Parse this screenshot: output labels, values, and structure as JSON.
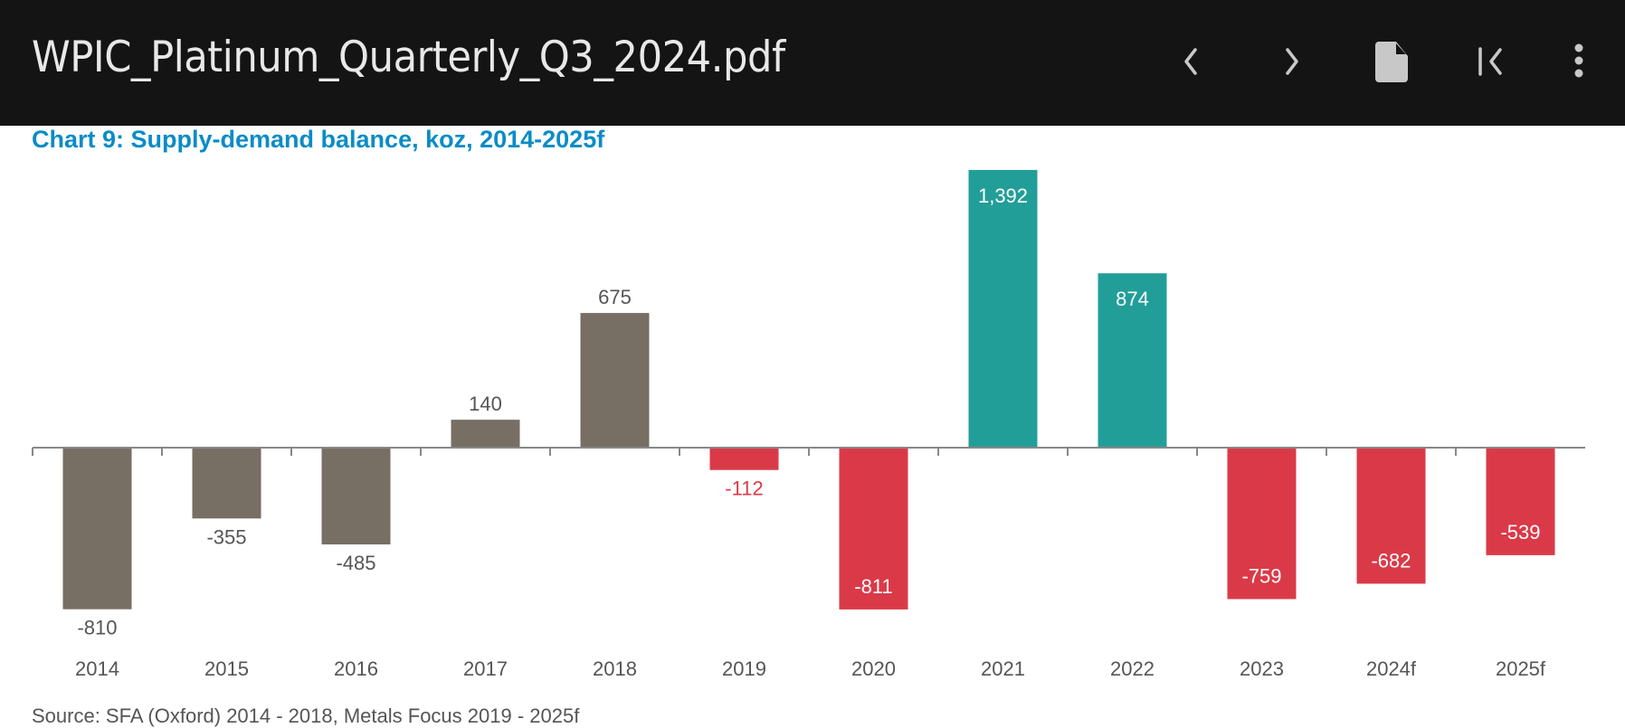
{
  "toolbar": {
    "title": "WPIC_Platinum_Quarterly_Q3_2024.pdf",
    "buttons": [
      {
        "name": "previous-button",
        "icon": "chevron-left-icon"
      },
      {
        "name": "next-button",
        "icon": "chevron-right-icon"
      },
      {
        "name": "document-button",
        "icon": "file-icon"
      },
      {
        "name": "first-page-button",
        "icon": "first-page-icon"
      },
      {
        "name": "more-options-button",
        "icon": "more-vertical-icon"
      }
    ]
  },
  "page": {
    "source": "Source: SFA (Oxford) 2014 - 2018, Metals Focus 2019 - 2025f"
  },
  "colors": {
    "historical": "#776e64",
    "surplus": "#229e99",
    "deficit": "#da3a48",
    "title": "#0a8cc6",
    "axis": "#888888"
  },
  "chart_data": {
    "type": "bar",
    "title": "Chart 9: Supply-demand balance, koz, 2014-2025f",
    "xlabel": "",
    "ylabel": "",
    "ylim": [
      -900,
      1450
    ],
    "grid": false,
    "legend": "none",
    "categories": [
      "2014",
      "2015",
      "2016",
      "2017",
      "2018",
      "2019",
      "2020",
      "2021",
      "2022",
      "2023",
      "2024f",
      "2025f"
    ],
    "values": [
      -810,
      -355,
      -485,
      140,
      675,
      -112,
      -811,
      1392,
      874,
      -759,
      -682,
      -539
    ],
    "labels": [
      "-810",
      "-355",
      "-485",
      "140",
      "675",
      "-112",
      "-811",
      "1,392",
      "874",
      "-759",
      "-682",
      "-539"
    ],
    "bar_groups": [
      "historical",
      "historical",
      "historical",
      "historical",
      "historical",
      "deficit",
      "deficit",
      "surplus",
      "surplus",
      "deficit",
      "deficit",
      "deficit"
    ],
    "label_inside": [
      false,
      false,
      false,
      false,
      false,
      false,
      true,
      true,
      true,
      true,
      true,
      true
    ]
  }
}
